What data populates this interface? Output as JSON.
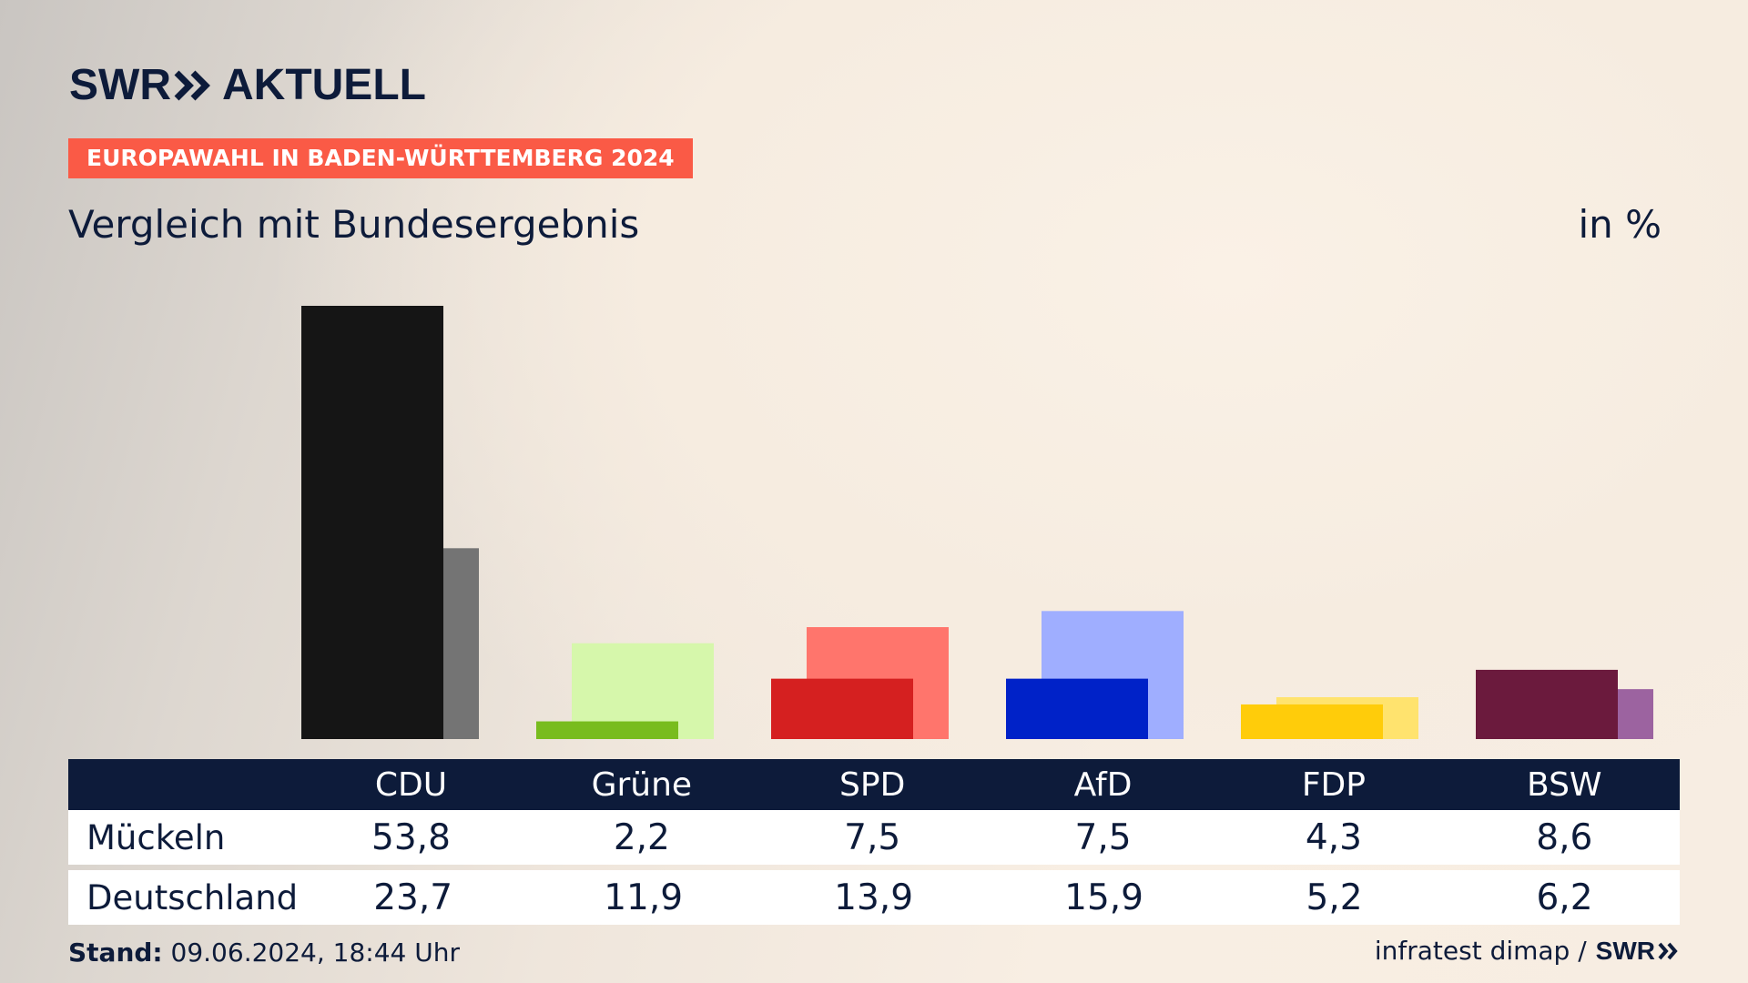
{
  "header": {
    "logo_left": "SWR",
    "logo_right": "AKTUELL",
    "badge": "EUROPAWAHL IN BADEN-WÜRTTEMBERG 2024",
    "subtitle": "Vergleich mit Bundesergebnis",
    "unit": "in %"
  },
  "table": {
    "rows": [
      {
        "label": "Mückeln"
      },
      {
        "label": "Deutschland"
      }
    ]
  },
  "footer": {
    "stand_label": "Stand:",
    "stand_value": "09.06.2024, 18:44 Uhr",
    "source": "infratest dimap /",
    "source_logo": "SWR"
  },
  "chart_data": {
    "type": "bar",
    "title": "Vergleich mit Bundesergebnis",
    "ylabel": "in %",
    "categories": [
      "CDU",
      "Grüne",
      "SPD",
      "AfD",
      "FDP",
      "BSW"
    ],
    "series": [
      {
        "name": "Mückeln",
        "values": [
          53.8,
          2.2,
          7.5,
          7.5,
          4.3,
          8.6
        ],
        "display": [
          "53,8",
          "2,2",
          "7,5",
          "7,5",
          "4,3",
          "8,6"
        ],
        "colors": [
          "#151515",
          "#78bc1e",
          "#d52020",
          "#0022c8",
          "#ffcc0a",
          "#6b1a3d"
        ]
      },
      {
        "name": "Deutschland",
        "values": [
          23.7,
          11.9,
          13.9,
          15.9,
          5.2,
          6.2
        ],
        "display": [
          "23,7",
          "11,9",
          "13,9",
          "15,9",
          "5,2",
          "6,2"
        ],
        "colors": [
          "#747474",
          "#d6f7ab",
          "#ff756c",
          "#9faeff",
          "#ffe36e",
          "#9c63a0"
        ]
      }
    ],
    "ylim": [
      0,
      53.8
    ]
  }
}
